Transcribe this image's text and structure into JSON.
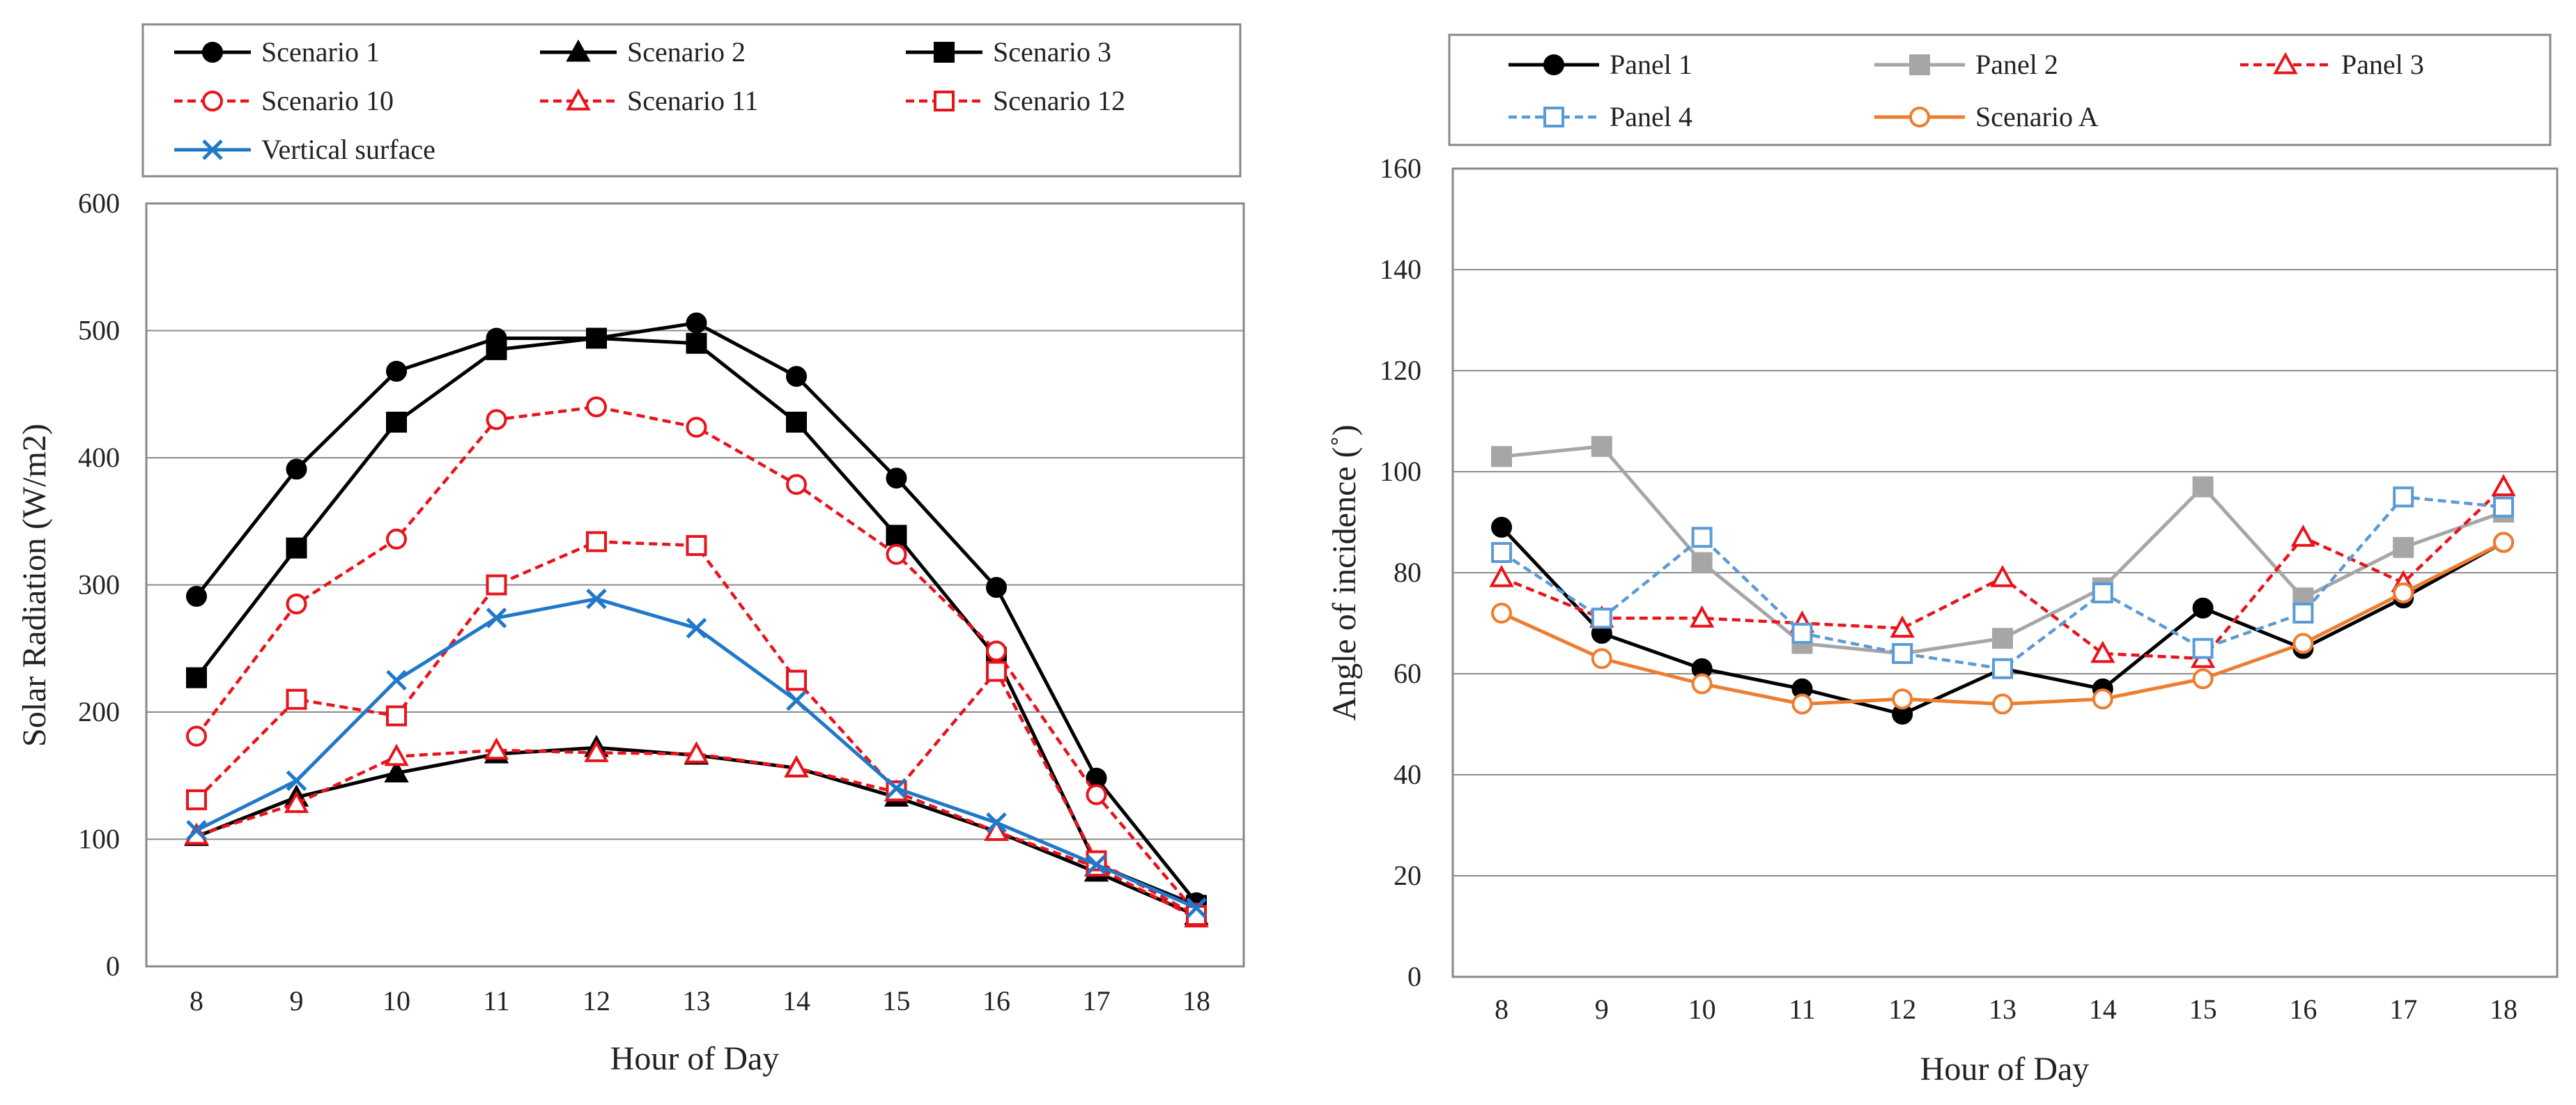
{
  "chart_data": [
    {
      "type": "line",
      "title": "",
      "xlabel": "Hour of Day",
      "ylabel": "Solar Radiation (W/m2)",
      "ylim": [
        0,
        600
      ],
      "yticks": [
        0,
        100,
        200,
        300,
        400,
        500,
        600
      ],
      "grid": true,
      "legend": "top",
      "x": [
        8,
        9,
        10,
        11,
        12,
        13,
        14,
        15,
        16,
        17,
        18
      ],
      "series": [
        {
          "name": "Scenario 1",
          "color": "#000000",
          "marker": "circle",
          "filled": true,
          "dashed": false,
          "values": [
            291,
            391,
            468,
            494,
            494,
            506,
            464,
            384,
            298,
            148,
            50
          ]
        },
        {
          "name": "Scenario 2",
          "color": "#000000",
          "marker": "triangle",
          "filled": true,
          "dashed": false,
          "values": [
            102,
            133,
            152,
            167,
            172,
            166,
            156,
            133,
            106,
            74,
            40
          ]
        },
        {
          "name": "Scenario 3",
          "color": "#000000",
          "marker": "square",
          "filled": true,
          "dashed": false,
          "values": [
            227,
            329,
            428,
            485,
            494,
            490,
            428,
            339,
            243,
            80,
            48
          ]
        },
        {
          "name": "Scenario 10",
          "color": "#e8141c",
          "marker": "circle",
          "filled": false,
          "dashed": true,
          "values": [
            181,
            285,
            336,
            430,
            440,
            424,
            379,
            324,
            248,
            135,
            42
          ]
        },
        {
          "name": "Scenario 11",
          "color": "#e8141c",
          "marker": "triangle",
          "filled": false,
          "dashed": true,
          "values": [
            103,
            128,
            165,
            170,
            168,
            167,
            156,
            137,
            106,
            78,
            38
          ]
        },
        {
          "name": "Scenario 12",
          "color": "#e8141c",
          "marker": "square",
          "filled": false,
          "dashed": true,
          "values": [
            131,
            210,
            197,
            300,
            334,
            331,
            225,
            138,
            232,
            83,
            40
          ]
        },
        {
          "name": "Vertical surface",
          "color": "#1f78c8",
          "marker": "x",
          "filled": false,
          "dashed": false,
          "values": [
            107,
            146,
            225,
            274,
            289,
            266,
            209,
            140,
            113,
            80,
            46
          ]
        }
      ]
    },
    {
      "type": "line",
      "title": "",
      "xlabel": "Hour of Day",
      "ylabel": "Angle of incidence (˚)",
      "ylim": [
        0,
        160
      ],
      "yticks": [
        0,
        20,
        40,
        60,
        80,
        100,
        120,
        140,
        160
      ],
      "grid": true,
      "legend": "top",
      "x": [
        8,
        9,
        10,
        11,
        12,
        13,
        14,
        15,
        16,
        17,
        18
      ],
      "series": [
        {
          "name": "Panel 1",
          "color": "#000000",
          "marker": "circle",
          "filled": true,
          "dashed": false,
          "values": [
            89,
            68,
            61,
            57,
            52,
            61,
            57,
            73,
            65,
            75,
            86
          ]
        },
        {
          "name": "Panel 2",
          "color": "#a6a6a6",
          "marker": "square",
          "filled": true,
          "dashed": false,
          "values": [
            103,
            105,
            82,
            66,
            64,
            67,
            77,
            97,
            75,
            85,
            92
          ]
        },
        {
          "name": "Panel 3",
          "color": "#e8141c",
          "marker": "triangle",
          "filled": false,
          "dashed": true,
          "values": [
            79,
            71,
            71,
            70,
            69,
            79,
            64,
            63,
            87,
            78,
            97
          ]
        },
        {
          "name": "Panel 4",
          "color": "#5b9bd5",
          "marker": "square",
          "filled": false,
          "dashed": true,
          "values": [
            84,
            71,
            87,
            68,
            64,
            61,
            76,
            65,
            72,
            95,
            93
          ]
        },
        {
          "name": "Scenario A",
          "color": "#ed7d31",
          "marker": "circle",
          "filled": false,
          "dashed": false,
          "values": [
            72,
            63,
            58,
            54,
            55,
            54,
            55,
            59,
            66,
            76,
            86
          ]
        }
      ]
    }
  ]
}
